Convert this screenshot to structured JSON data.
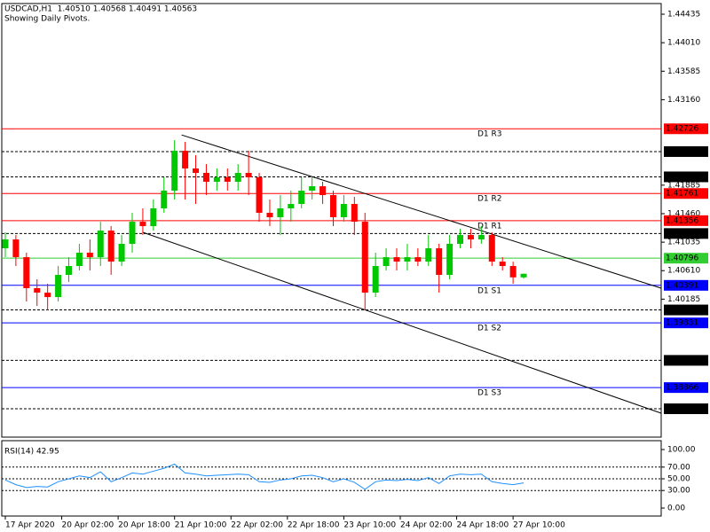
{
  "chart_data": {
    "type": "candlestick",
    "title": "USDCAD,H1  1.40510 1.40568 1.40491 1.40563",
    "subtitle": "Showing Daily Pivots.",
    "x": [
      0,
      3,
      6,
      9,
      12,
      15,
      18,
      21,
      24,
      27,
      30,
      33,
      36,
      39,
      42,
      45,
      48,
      51,
      54,
      57,
      60,
      63,
      66,
      69,
      72,
      75,
      78,
      81,
      84,
      87,
      90,
      93,
      96,
      99,
      102,
      105,
      108,
      111,
      114,
      117,
      120,
      123,
      126,
      129,
      132,
      135,
      138,
      141,
      144,
      147
    ],
    "open": [
      1.40944,
      1.41076,
      1.40811,
      1.40349,
      1.40282,
      1.40216,
      1.40547,
      1.40679,
      1.40878,
      1.40811,
      1.41208,
      1.40745,
      1.4101,
      1.4134,
      1.41274,
      1.41539,
      1.41803,
      1.42398,
      1.42134,
      1.42068,
      1.41936,
      1.42002,
      1.41936,
      1.42068,
      1.42002,
      1.41473,
      1.41407,
      1.41539,
      1.41605,
      1.41803,
      1.41869,
      1.41737,
      1.41407,
      1.41605,
      1.4134,
      1.40282,
      1.40679,
      1.40811,
      1.40745,
      1.40811,
      1.40745,
      1.40944,
      1.40547,
      1.4101,
      1.41142,
      1.41076,
      1.41142,
      1.40745,
      1.40679,
      1.4051
    ],
    "high": [
      1.41182,
      1.41142,
      1.40878,
      1.40481,
      1.40415,
      1.40679,
      1.40811,
      1.4101,
      1.41076,
      1.4134,
      1.41274,
      1.41142,
      1.41473,
      1.41539,
      1.41671,
      1.42002,
      1.42557,
      1.42531,
      1.42332,
      1.422,
      1.42134,
      1.42134,
      1.422,
      1.42398,
      1.42068,
      1.41671,
      1.41737,
      1.41803,
      1.42002,
      1.42002,
      1.41936,
      1.41803,
      1.41737,
      1.41711,
      1.41473,
      1.40878,
      1.40944,
      1.40944,
      1.4101,
      1.40944,
      1.41142,
      1.4101,
      1.41142,
      1.41235,
      1.41235,
      1.41274,
      1.41182,
      1.40811,
      1.40745,
      1.40568
    ],
    "low": [
      1.40811,
      1.40679,
      1.4015,
      1.40084,
      1.40018,
      1.4015,
      1.40441,
      1.40613,
      1.40613,
      1.40679,
      1.40547,
      1.40679,
      1.40878,
      1.41142,
      1.41208,
      1.41473,
      1.41671,
      1.41671,
      1.41605,
      1.41737,
      1.41803,
      1.41803,
      1.41803,
      1.41737,
      1.4134,
      1.41274,
      1.41142,
      1.4134,
      1.41539,
      1.41671,
      1.41605,
      1.41274,
      1.4134,
      1.41142,
      1.40018,
      1.40216,
      1.40613,
      1.40613,
      1.40613,
      1.40679,
      1.40679,
      1.40282,
      1.40481,
      1.40944,
      1.40944,
      1.4101,
      1.40679,
      1.40613,
      1.40415,
      1.40491
    ],
    "close": [
      1.41076,
      1.40811,
      1.40349,
      1.40282,
      1.40216,
      1.40547,
      1.40679,
      1.40878,
      1.40811,
      1.41208,
      1.40745,
      1.4101,
      1.4134,
      1.41274,
      1.41539,
      1.41803,
      1.42398,
      1.42134,
      1.42068,
      1.41936,
      1.42002,
      1.41936,
      1.42068,
      1.42002,
      1.41473,
      1.41407,
      1.41539,
      1.41605,
      1.41803,
      1.41869,
      1.41737,
      1.41407,
      1.41605,
      1.4134,
      1.40282,
      1.40679,
      1.40811,
      1.40745,
      1.40811,
      1.40745,
      1.40944,
      1.40547,
      1.4101,
      1.41142,
      1.41076,
      1.41142,
      1.40745,
      1.40679,
      1.4051,
      1.40563
    ],
    "up_color": "#00c800",
    "down_color": "#ff0000",
    "xlim": [
      -1,
      186
    ],
    "xticks": [
      {
        "value": 0,
        "label": "17 Apr 2020"
      },
      {
        "value": 16,
        "label": "20 Apr 02:00"
      },
      {
        "value": 32,
        "label": "20 Apr 18:00"
      },
      {
        "value": 48,
        "label": "21 Apr 10:00"
      },
      {
        "value": 64,
        "label": "22 Apr 02:00"
      },
      {
        "value": 80,
        "label": "22 Apr 18:00"
      },
      {
        "value": 96,
        "label": "23 Apr 10:00"
      },
      {
        "value": 112,
        "label": "24 Apr 02:00"
      },
      {
        "value": 128,
        "label": "24 Apr 18:00"
      },
      {
        "value": 144,
        "label": "27 Apr 10:00"
      }
    ],
    "ylim": [
      1.38127,
      1.44594
    ],
    "yticks": [
      1.44435,
      {
        "value": 1.4401,
        "label": "1.44010"
      },
      1.43585,
      {
        "value": 1.4316,
        "label": "1.43160"
      },
      1.41885,
      {
        "value": 1.4146,
        "label": "1.41460"
      },
      1.41035,
      {
        "value": 1.4061,
        "label": "1.40610"
      },
      1.40185
    ],
    "levels": [
      {
        "value": 1.42726,
        "label": "1.42726",
        "name": "D1 R3",
        "color": "#ff0000",
        "style": "solid"
      },
      {
        "value": 1.42386,
        "label": "1.42386",
        "color": "#000000",
        "style": "dashed"
      },
      {
        "value": 1.42009,
        "label": "1.42009",
        "color": "#000000",
        "style": "dashed"
      },
      {
        "value": 1.41761,
        "label": "1.41761",
        "name": "D1 R2",
        "color": "#ff0000",
        "style": "solid"
      },
      {
        "value": 1.41356,
        "label": "1.41356",
        "name": "D1 R1",
        "color": "#ff0000",
        "style": "solid"
      },
      {
        "value": 1.41164,
        "label": "1.41164",
        "color": "#000000",
        "style": "dashed"
      },
      {
        "value": 1.40796,
        "label": "1.40796",
        "color": "#32cd32",
        "style": "solid"
      },
      {
        "value": 1.40391,
        "label": "1.40391",
        "name": "D1 S1",
        "color": "#0000ff",
        "style": "solid"
      },
      {
        "value": 1.40024,
        "label": "1.40024",
        "color": "#000000",
        "style": "dashed"
      },
      {
        "value": 1.39831,
        "label": "1.39831",
        "name": "D1 S2",
        "color": "#0000ff",
        "style": "solid"
      },
      {
        "value": 1.39272,
        "label": "1.39272",
        "color": "#000000",
        "style": "dashed"
      },
      {
        "value": 1.38866,
        "label": "1.38866",
        "name": "D1 S3",
        "color": "#0000ff",
        "style": "solid"
      },
      {
        "value": 1.3855,
        "label": "1.38550",
        "color": "#000000",
        "style": "dashed"
      }
    ],
    "trendlines": [
      {
        "x": [
          50,
          186
        ],
        "y": [
          1.42634,
          1.40349
        ],
        "color": "#000000"
      },
      {
        "x": [
          39,
          186
        ],
        "y": [
          1.41182,
          1.38484
        ],
        "color": "#000000"
      }
    ],
    "rsi": {
      "label": "RSI(14) 42.95",
      "color": "#1e90ff",
      "values": [
        48,
        40,
        35,
        37,
        36,
        45,
        50,
        55,
        52,
        62,
        45,
        52,
        60,
        58,
        63,
        68,
        75,
        60,
        58,
        55,
        56,
        57,
        58,
        57,
        45,
        44,
        48,
        50,
        55,
        56,
        52,
        45,
        50,
        44,
        32,
        45,
        48,
        47,
        49,
        47,
        52,
        42,
        55,
        58,
        57,
        58,
        45,
        42,
        40,
        42.95
      ],
      "ylim": [
        0,
        100
      ],
      "yticks": [
        {
          "value": 100,
          "label": "100.00"
        },
        {
          "value": 70,
          "label": "70.00"
        },
        {
          "value": 50,
          "label": "50.00"
        },
        {
          "value": 30,
          "label": "30.00"
        },
        {
          "value": 0,
          "label": "0.00"
        }
      ]
    }
  }
}
